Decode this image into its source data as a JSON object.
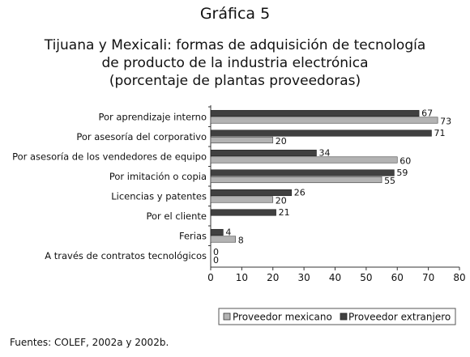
{
  "figure_number": "Gráfica 5",
  "source": "Fuentes: COLEF, 2002a y 2002b.",
  "colors": {
    "proveedor_mexicano": "#b3b3b3",
    "proveedor_extranjero": "#404040",
    "axis": "#333333"
  },
  "chart_data": {
    "type": "bar",
    "orientation": "horizontal",
    "title": "Tijuana y Mexicali: formas de adquisición de tecnología de producto de la industria electrónica (porcentaje de plantas proveedoras)",
    "title_lines": [
      "Tijuana y Mexicali: formas de adquisición de tecnología",
      "de producto de la industria electrónica",
      "(porcentaje de plantas proveedoras)"
    ],
    "categories": [
      "Por aprendizaje interno",
      "Por asesoría del corporativo",
      "Por asesoría de los vendedores de equipo",
      "Por imitación o copia",
      "Licencias y patentes",
      "Por el cliente",
      "Ferias",
      "A través de contratos tecnológicos"
    ],
    "series": [
      {
        "name": "Proveedor mexicano",
        "values": [
          73,
          20,
          60,
          55,
          20,
          null,
          8,
          0
        ]
      },
      {
        "name": "Proveedor extranjero",
        "values": [
          67,
          71,
          34,
          59,
          26,
          21,
          4,
          0
        ]
      }
    ],
    "data_labels": [
      {
        "mexicano": "73",
        "extranjero": "67"
      },
      {
        "mexicano": "20",
        "extranjero": "71"
      },
      {
        "mexicano": "60",
        "extranjero": "34"
      },
      {
        "mexicano": "55",
        "extranjero": "59"
      },
      {
        "mexicano": "20",
        "extranjero": "26"
      },
      {
        "mexicano": "",
        "extranjero": "21"
      },
      {
        "mexicano": "8",
        "extranjero": "4"
      },
      {
        "mexicano": "0",
        "extranjero": "0"
      }
    ],
    "xlim": [
      0,
      80
    ],
    "xticks": [
      0,
      10,
      20,
      30,
      40,
      50,
      60,
      70,
      80
    ],
    "legend_position": "bottom-right",
    "grid": false
  }
}
